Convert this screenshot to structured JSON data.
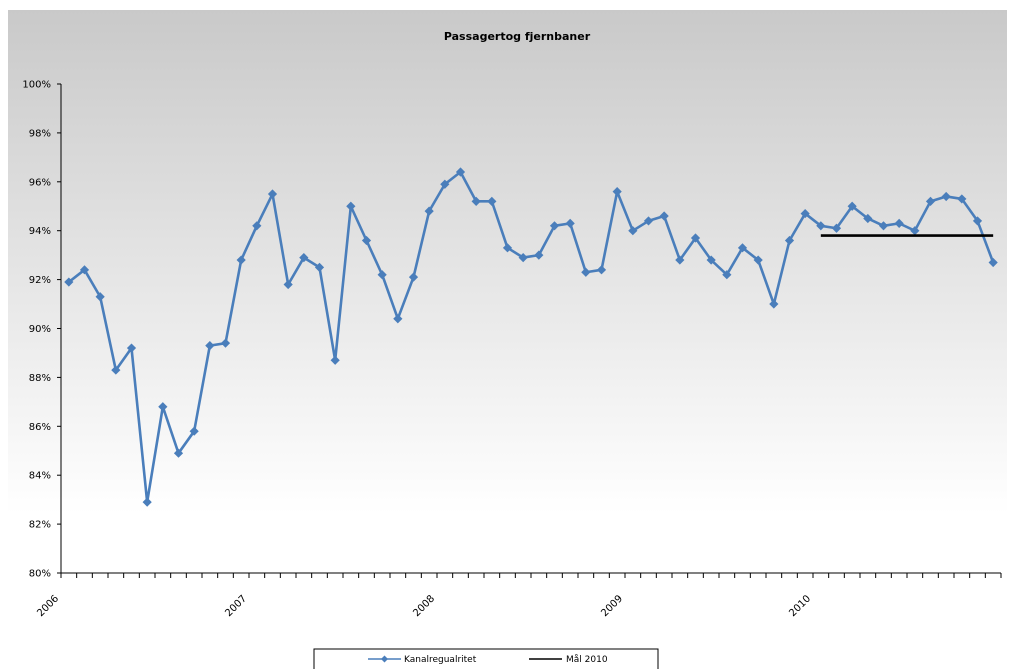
{
  "chart_data": {
    "type": "line",
    "title": "Passagertog fjernbaner",
    "xlabel": "",
    "ylabel": "",
    "y_tick_labels": [
      "80%",
      "82%",
      "84%",
      "86%",
      "88%",
      "90%",
      "92%",
      "94%",
      "96%",
      "98%",
      "100%"
    ],
    "ylim": [
      80,
      100
    ],
    "y_unit": "%",
    "x_tick_labels": [
      "2006",
      "2007",
      "2008",
      "2009",
      "2010"
    ],
    "x_year_start_index": [
      0,
      12,
      24,
      36,
      48
    ],
    "grid": false,
    "legend_position": "bottom",
    "series": [
      {
        "name": "Kanalregualritet",
        "color": "#4A7EBB",
        "marker": "diamond",
        "values": [
          91.9,
          92.4,
          91.3,
          88.3,
          89.2,
          82.9,
          86.8,
          84.9,
          85.8,
          89.3,
          89.4,
          92.8,
          94.2,
          95.5,
          91.8,
          92.9,
          92.5,
          88.7,
          95.0,
          93.6,
          92.2,
          90.4,
          92.1,
          94.8,
          95.9,
          96.4,
          95.2,
          95.2,
          93.3,
          92.9,
          93.0,
          94.2,
          94.3,
          92.3,
          92.4,
          95.6,
          94.0,
          94.4,
          94.6,
          92.8,
          93.7,
          92.8,
          92.2,
          93.3,
          92.8,
          91.0,
          93.6,
          94.7,
          94.2,
          94.1,
          95.0,
          94.5,
          94.2,
          94.3,
          94.0,
          95.2,
          95.4,
          95.3,
          94.4,
          92.7
        ]
      },
      {
        "name": "Mål 2010",
        "color": "#000000",
        "from_index": 48,
        "to_index": 59,
        "value": 93.8
      }
    ]
  }
}
